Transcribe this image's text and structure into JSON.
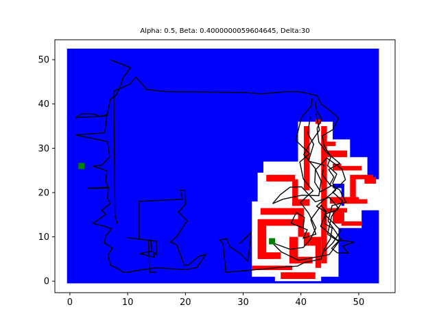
{
  "chart_data": {
    "type": "scatter",
    "title": "Alpha: 0.5, Beta: 0.4000000059604645, Delta:30",
    "xlabel": "",
    "ylabel": "",
    "xlim": [
      -2.6,
      56.3
    ],
    "ylim": [
      -2.6,
      54.5
    ],
    "x_ticks": [
      0,
      10,
      20,
      30,
      40,
      50
    ],
    "y_ticks": [
      0,
      10,
      20,
      30,
      40,
      50
    ],
    "colors": {
      "free_space": "#0000ff",
      "obstacle": "#ff0000",
      "inflated_region": "#ffffff",
      "path": "#000000",
      "waypoint": "#008000"
    },
    "grid": false,
    "regions": {
      "free_space": {
        "x": [
          -0.5,
          53.5
        ],
        "y": [
          -0.5,
          52.5
        ]
      },
      "inflated": [
        {
          "x": [
            32.5,
            36.5
          ],
          "y": [
            18,
            24.5
          ]
        },
        {
          "x": [
            33.5,
            40.5
          ],
          "y": [
            16,
            27
          ]
        },
        {
          "x": [
            31.5,
            46.5
          ],
          "y": [
            1,
            18
          ]
        },
        {
          "x": [
            37.5,
            47
          ],
          "y": [
            17,
            21
          ]
        },
        {
          "x": [
            39.5,
            45.5
          ],
          "y": [
            2,
            36
          ]
        },
        {
          "x": [
            44.5,
            47.5
          ],
          "y": [
            27,
            31
          ]
        },
        {
          "x": [
            45.5,
            48.5
          ],
          "y": [
            28,
            32
          ]
        },
        {
          "x": [
            45.5,
            51.5
          ],
          "y": [
            22,
            28
          ]
        },
        {
          "x": [
            47.5,
            53.5
          ],
          "y": [
            18,
            23
          ]
        },
        {
          "x": [
            47.5,
            54.5
          ],
          "y": [
            16,
            20
          ]
        },
        {
          "x": [
            44.5,
            50.5
          ],
          "y": [
            12,
            17
          ]
        },
        {
          "x": [
            35.5,
            43.5
          ],
          "y": [
            0,
            3
          ]
        }
      ],
      "obstacles": [
        {
          "x": [
            34,
            39
          ],
          "y": [
            22.5,
            24
          ]
        },
        {
          "x": [
            38.5,
            39.5
          ],
          "y": [
            17,
            23
          ]
        },
        {
          "x": [
            38.5,
            41.5
          ],
          "y": [
            17,
            18.5
          ]
        },
        {
          "x": [
            33,
            40.5
          ],
          "y": [
            15,
            16.5
          ]
        },
        {
          "x": [
            39.5,
            40.5
          ],
          "y": [
            10,
            16.5
          ]
        },
        {
          "x": [
            40.5,
            41.5
          ],
          "y": [
            8,
            11
          ]
        },
        {
          "x": [
            32.5,
            39.5
          ],
          "y": [
            12.5,
            14
          ]
        },
        {
          "x": [
            32.5,
            34
          ],
          "y": [
            5,
            13
          ]
        },
        {
          "x": [
            33,
            36.5
          ],
          "y": [
            5,
            6.5
          ]
        },
        {
          "x": [
            31.5,
            38.5
          ],
          "y": [
            2.5,
            3.5
          ]
        },
        {
          "x": [
            36.5,
            42.5
          ],
          "y": [
            0.5,
            2
          ]
        },
        {
          "x": [
            38,
            39.5
          ],
          "y": [
            4,
            10
          ]
        },
        {
          "x": [
            38,
            42
          ],
          "y": [
            4,
            5.5
          ]
        },
        {
          "x": [
            42.5,
            43.5
          ],
          "y": [
            35.5,
            36.5
          ]
        },
        {
          "x": [
            43.5,
            44.5
          ],
          "y": [
            4,
            35
          ]
        },
        {
          "x": [
            40.5,
            41.5
          ],
          "y": [
            20.5,
            35
          ]
        },
        {
          "x": [
            41.5,
            43.5
          ],
          "y": [
            8,
            10
          ]
        },
        {
          "x": [
            42.5,
            43.5
          ],
          "y": [
            3,
            8
          ]
        },
        {
          "x": [
            44,
            46
          ],
          "y": [
            30.5,
            31.5
          ]
        },
        {
          "x": [
            44.5,
            48
          ],
          "y": [
            28,
            29.5
          ]
        },
        {
          "x": [
            45.5,
            47
          ],
          "y": [
            25,
            26.5
          ]
        },
        {
          "x": [
            46,
            50.5
          ],
          "y": [
            25,
            26
          ]
        },
        {
          "x": [
            48.5,
            52.5
          ],
          "y": [
            23,
            24
          ]
        },
        {
          "x": [
            48.5,
            49.5
          ],
          "y": [
            19,
            23
          ]
        },
        {
          "x": [
            51,
            53
          ],
          "y": [
            22,
            23.5
          ]
        },
        {
          "x": [
            45,
            50
          ],
          "y": [
            17.5,
            19
          ]
        },
        {
          "x": [
            47.5,
            51.5
          ],
          "y": [
            17.5,
            18.5
          ]
        },
        {
          "x": [
            44,
            48
          ],
          "y": [
            15.5,
            16.5
          ]
        },
        {
          "x": [
            45.5,
            47.5
          ],
          "y": [
            13,
            15.5
          ]
        },
        {
          "x": [
            47,
            50.5
          ],
          "y": [
            12.5,
            13.5
          ]
        }
      ]
    },
    "path": [
      [
        7,
        50
      ],
      [
        10.5,
        48.2
      ],
      [
        9.2,
        45.9
      ],
      [
        8.6,
        43.6
      ],
      [
        8,
        42
      ],
      [
        7,
        41
      ],
      [
        6.4,
        37.3
      ],
      [
        1,
        36.9
      ],
      [
        2.1,
        37.8
      ],
      [
        4.2,
        37.7
      ],
      [
        5.2,
        37.2
      ],
      [
        6.4,
        37.6
      ],
      [
        6.2,
        35
      ],
      [
        6,
        33.5
      ],
      [
        1,
        33
      ],
      [
        6.5,
        31.5
      ],
      [
        6.6,
        30.6
      ],
      [
        6.9,
        28.1
      ],
      [
        5.5,
        26.2
      ],
      [
        4,
        26
      ],
      [
        6.4,
        24.9
      ],
      [
        6.2,
        22.6
      ],
      [
        6.6,
        21
      ],
      [
        3,
        21
      ],
      [
        6.7,
        21.2
      ],
      [
        6.5,
        18.7
      ],
      [
        7,
        17.5
      ],
      [
        5.5,
        16
      ],
      [
        6.2,
        15.1
      ],
      [
        4,
        13
      ],
      [
        6,
        12.4
      ],
      [
        7.2,
        11.8
      ],
      [
        6.2,
        10.2
      ],
      [
        6,
        8.6
      ],
      [
        7.3,
        7.5
      ],
      [
        6.6,
        5.8
      ],
      [
        7,
        3.6
      ],
      [
        8.6,
        2.6
      ],
      [
        9.2,
        2
      ],
      [
        10,
        2
      ],
      [
        12,
        2.5
      ],
      [
        15,
        3
      ],
      [
        20,
        2.6
      ],
      [
        22,
        3.1
      ],
      [
        23.5,
        6
      ],
      [
        22.3,
        5.6
      ],
      [
        20.5,
        3.6
      ],
      [
        19.8,
        3.6
      ],
      [
        18.5,
        8.2
      ],
      [
        17.4,
        8.8
      ],
      [
        18.5,
        10.1
      ],
      [
        20.3,
        13.6
      ],
      [
        18.8,
        15.6
      ],
      [
        20,
        17.4
      ],
      [
        19.9,
        20.5
      ],
      [
        19.1,
        20.5
      ],
      [
        19.5,
        18.5
      ],
      [
        12,
        18
      ],
      [
        12,
        9.5
      ],
      [
        10,
        9.8
      ],
      [
        15,
        9
      ],
      [
        15,
        6
      ],
      [
        14.4,
        6.6
      ],
      [
        14.6,
        5.4
      ],
      [
        12.1,
        6.2
      ],
      [
        14.2,
        6.8
      ],
      [
        14,
        9.3
      ],
      [
        13.6,
        9.2
      ],
      [
        13.8,
        2
      ],
      [
        15,
        2
      ]
    ],
    "path_outer": [
      [
        8.2,
        13
      ],
      [
        7.8,
        15
      ],
      [
        7.6,
        42.9
      ],
      [
        10.4,
        44.5
      ],
      [
        11.4,
        46.1
      ],
      [
        13.4,
        43.2
      ],
      [
        16.6,
        42.8
      ],
      [
        30,
        42.6
      ],
      [
        33,
        42.3
      ],
      [
        38,
        42.8
      ],
      [
        40,
        42.7
      ],
      [
        42.8,
        41.9
      ],
      [
        43.5,
        40
      ],
      [
        45.4,
        38.1
      ],
      [
        46.5,
        36.8
      ],
      [
        45.5,
        34.2
      ],
      [
        43.7,
        32.8
      ],
      [
        44,
        30.6
      ],
      [
        45.2,
        28.1
      ],
      [
        44.6,
        26.1
      ],
      [
        46.2,
        24.2
      ],
      [
        45.5,
        22.1
      ],
      [
        46,
        20.5
      ],
      [
        44,
        18.4
      ],
      [
        42.7,
        16.9
      ],
      [
        44.3,
        15.6
      ],
      [
        44.1,
        13
      ],
      [
        45.4,
        12
      ],
      [
        45.1,
        9.6
      ],
      [
        44,
        7.2
      ],
      [
        43.5,
        5
      ],
      [
        40.6,
        4.2
      ],
      [
        39.4,
        3.4
      ],
      [
        36.2,
        3.1
      ],
      [
        31.5,
        2.5
      ],
      [
        27,
        2
      ],
      [
        26.5,
        8.5
      ],
      [
        25.9,
        9.3
      ],
      [
        27.1,
        9.6
      ],
      [
        27.7,
        7.8
      ],
      [
        29.6,
        6.1
      ],
      [
        30.8,
        4.5
      ],
      [
        31.4,
        11
      ],
      [
        29.3,
        8.4
      ]
    ],
    "path_right": [
      [
        41.9,
        41.3
      ],
      [
        41.8,
        39.6
      ],
      [
        40.1,
        37
      ],
      [
        39.1,
        31.8
      ],
      [
        41.5,
        28.8
      ],
      [
        39.8,
        26.9
      ],
      [
        40.4,
        23.1
      ],
      [
        42.1,
        20.4
      ],
      [
        39.9,
        17.8
      ],
      [
        41.3,
        15.4
      ],
      [
        42.6,
        12
      ],
      [
        41.6,
        9.4
      ],
      [
        40.4,
        7.6
      ],
      [
        38.1,
        7.2
      ],
      [
        35,
        8.7
      ],
      [
        36.6,
        6.6
      ],
      [
        39.6,
        4.7
      ],
      [
        44.9,
        6
      ],
      [
        46.9,
        9.5
      ],
      [
        44.7,
        13.6
      ],
      [
        45.4,
        17.1
      ],
      [
        47.8,
        17.8
      ],
      [
        46.7,
        20.6
      ],
      [
        45,
        21.8
      ],
      [
        45.7,
        23.5
      ],
      [
        44.8,
        25.2
      ],
      [
        46.7,
        26.6
      ],
      [
        44.4,
        29.1
      ],
      [
        43.1,
        31.4
      ],
      [
        42.8,
        34.5
      ],
      [
        43.6,
        36.6
      ],
      [
        42.7,
        38.5
      ],
      [
        42.5,
        40.5
      ]
    ],
    "path_right2": [
      [
        42.6,
        37.8
      ],
      [
        43.2,
        34.1
      ],
      [
        41.7,
        31.3
      ],
      [
        40.5,
        28.6
      ],
      [
        42.4,
        25.6
      ],
      [
        43.5,
        22.6
      ],
      [
        43.1,
        19.3
      ],
      [
        40.2,
        19.4
      ],
      [
        36.9,
        18.5
      ],
      [
        35.1,
        17.5
      ],
      [
        36.4,
        19.5
      ],
      [
        38.1,
        21.2
      ],
      [
        40.1,
        21.3
      ],
      [
        42.5,
        17.9
      ],
      [
        44.9,
        18.9
      ],
      [
        46.4,
        16.7
      ],
      [
        45.3,
        14.6
      ],
      [
        44.6,
        10.6
      ],
      [
        46.5,
        9
      ],
      [
        45.3,
        7.4
      ],
      [
        46.3,
        6.4
      ],
      [
        48.2,
        6.3
      ],
      [
        47.2,
        7.9
      ],
      [
        49.2,
        8.8
      ],
      [
        46.3,
        9.3
      ],
      [
        43.4,
        12.4
      ],
      [
        44.4,
        15.6
      ],
      [
        43.5,
        17.1
      ],
      [
        41.7,
        13.9
      ],
      [
        42.6,
        10.6
      ],
      [
        40.4,
        9.7
      ],
      [
        41.1,
        11.6
      ],
      [
        38.3,
        13.1
      ],
      [
        39.2,
        15.5
      ],
      [
        40.6,
        14.4
      ],
      [
        40.4,
        12.2
      ]
    ],
    "path_right3": [
      [
        41.6,
        37.1
      ],
      [
        41.2,
        33.3
      ],
      [
        42.2,
        30.9
      ],
      [
        41.3,
        27.1
      ],
      [
        44,
        26.2
      ],
      [
        43.7,
        24
      ],
      [
        45.2,
        21.5
      ],
      [
        43.4,
        20.2
      ],
      [
        42.4,
        22.3
      ],
      [
        42.5,
        25.1
      ],
      [
        44.5,
        27.8
      ],
      [
        47.1,
        25.3
      ],
      [
        47.7,
        22.9
      ],
      [
        45.5,
        20.1
      ],
      [
        47.2,
        18.1
      ],
      [
        46.3,
        16.1
      ],
      [
        44.1,
        15.1
      ],
      [
        46.9,
        11.4
      ],
      [
        45.5,
        8.6
      ],
      [
        44,
        6.7
      ]
    ],
    "waypoints": [
      [
        2,
        26
      ],
      [
        35,
        9
      ]
    ]
  }
}
